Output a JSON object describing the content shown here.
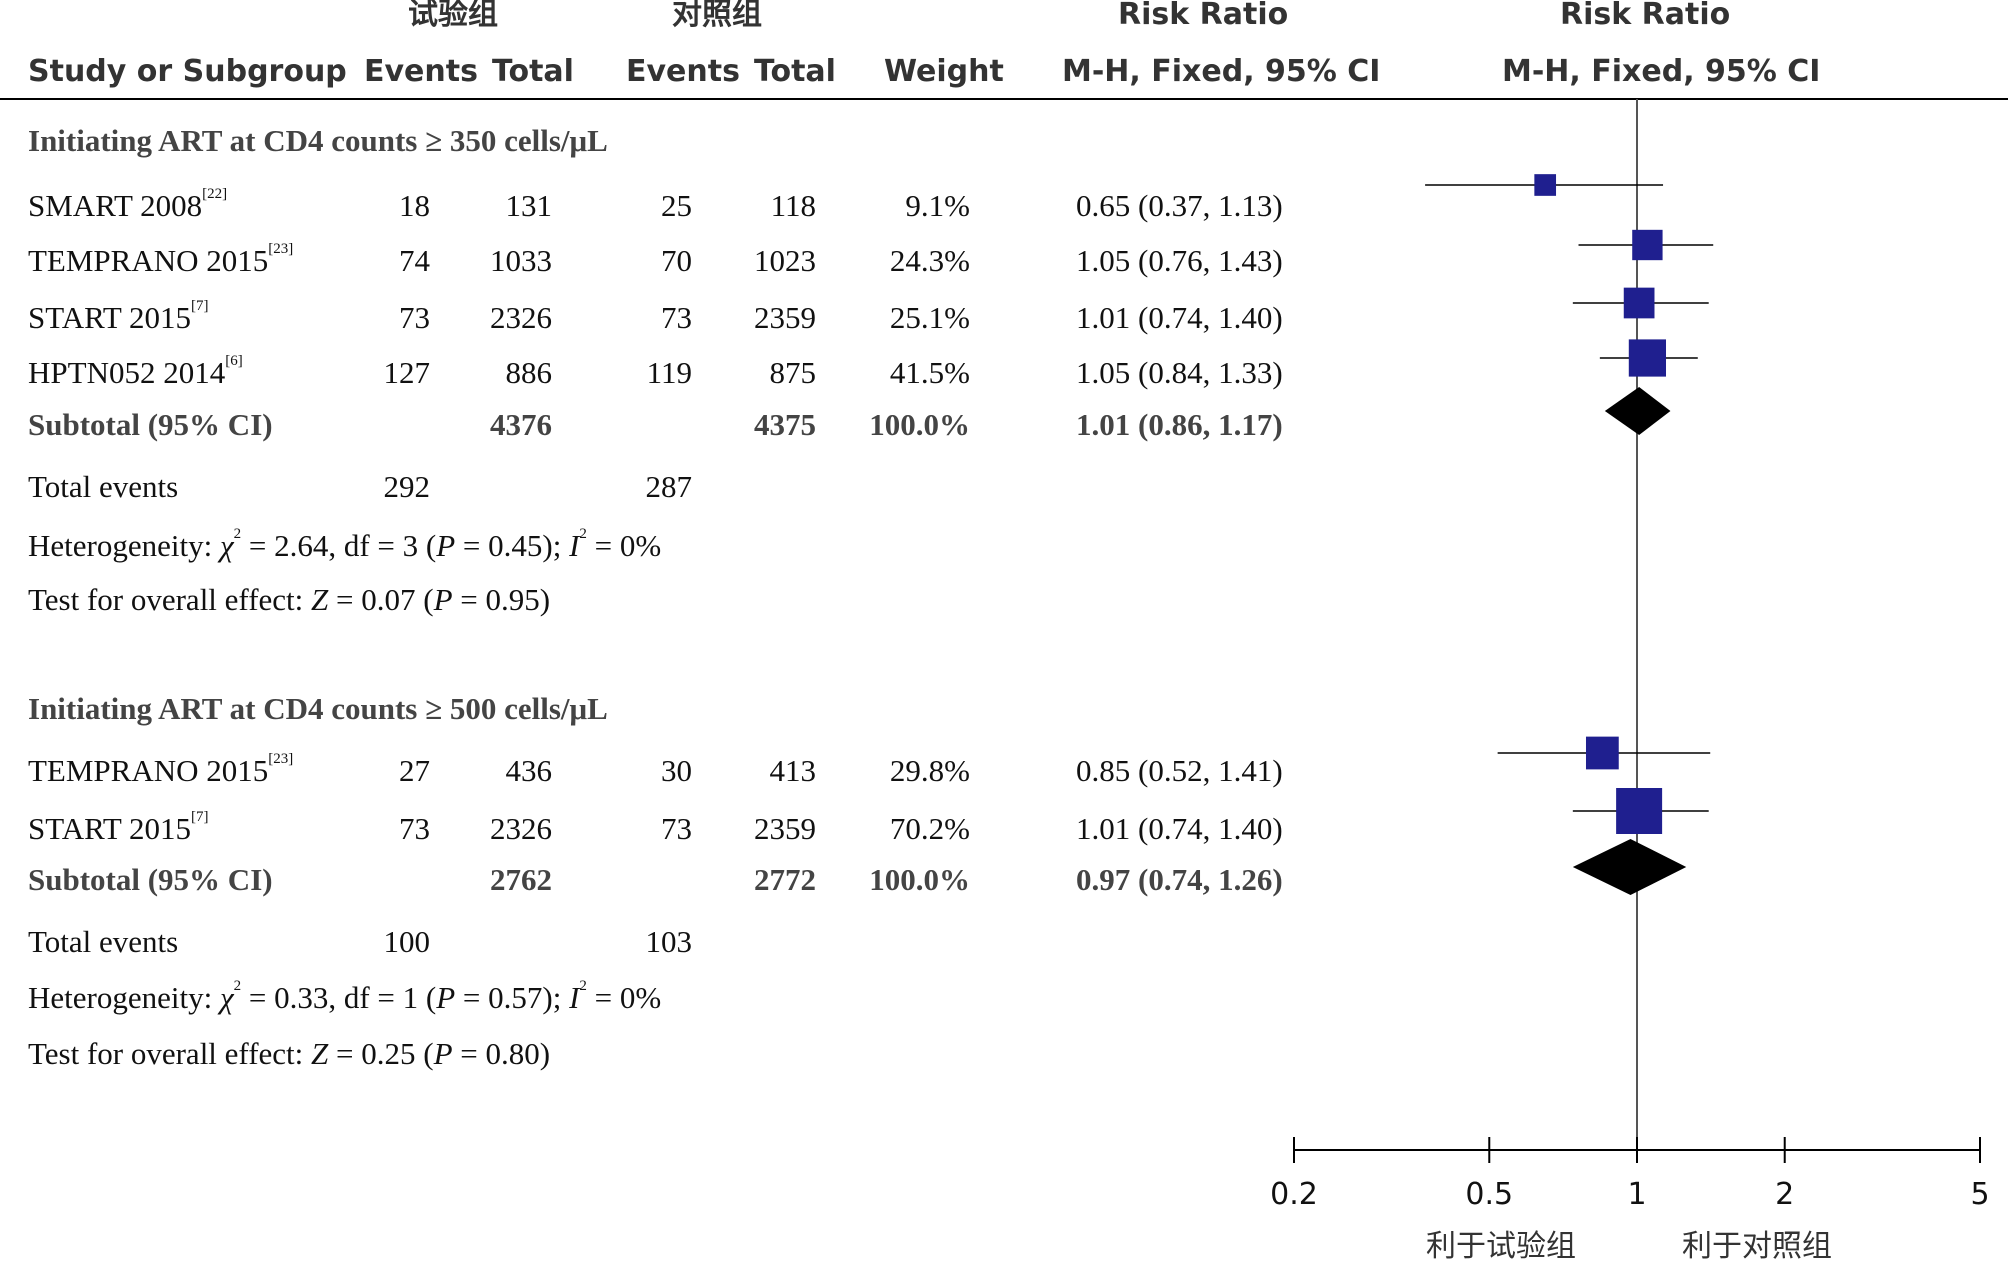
{
  "header": {
    "group_exp": "试验组",
    "group_ctrl": "对照组",
    "risk_ratio_label": "Risk Ratio",
    "risk_ratio_plot_label": "Risk Ratio",
    "col_study": "Study or Subgroup",
    "col_events_exp": "Events",
    "col_total_exp": "Total",
    "col_events_ctrl": "Events",
    "col_total_ctrl": "Total",
    "col_weight": "Weight",
    "col_ci": "M-H, Fixed, 95% CI",
    "col_ci_plot": "M-H, Fixed, 95% CI"
  },
  "chart_data": {
    "type": "forest",
    "scale": "log",
    "xlim": [
      0.2,
      5
    ],
    "xticks": [
      "0.2",
      "0.5",
      "1",
      "2",
      "5"
    ],
    "reference_line": 1,
    "favours_left": "利于试验组",
    "favours_right": "利于对照组",
    "subgroups": [
      {
        "title": "Initiating ART at CD4 counts ≥ 350 cells/μL",
        "studies": [
          {
            "name": "SMART 2008",
            "ref": "[22]",
            "events_exp": "18",
            "total_exp": "131",
            "events_ctrl": "25",
            "total_ctrl": "118",
            "weight": "9.1%",
            "ci_text": "0.65 (0.37, 1.13)",
            "rr": 0.65,
            "lo": 0.37,
            "hi": 1.13,
            "w": 9.1
          },
          {
            "name": "TEMPRANO 2015",
            "ref": "[23]",
            "events_exp": "74",
            "total_exp": "1033",
            "events_ctrl": "70",
            "total_ctrl": "1023",
            "weight": "24.3%",
            "ci_text": "1.05 (0.76, 1.43)",
            "rr": 1.05,
            "lo": 0.76,
            "hi": 1.43,
            "w": 24.3
          },
          {
            "name": "START 2015",
            "ref": "[7]",
            "events_exp": "73",
            "total_exp": "2326",
            "events_ctrl": "73",
            "total_ctrl": "2359",
            "weight": "25.1%",
            "ci_text": "1.01 (0.74, 1.40)",
            "rr": 1.01,
            "lo": 0.74,
            "hi": 1.4,
            "w": 25.1
          },
          {
            "name": "HPTN052 2014",
            "ref": "[6]",
            "events_exp": "127",
            "total_exp": "886",
            "events_ctrl": "119",
            "total_ctrl": "875",
            "weight": "41.5%",
            "ci_text": "1.05 (0.84, 1.33)",
            "rr": 1.05,
            "lo": 0.84,
            "hi": 1.33,
            "w": 41.5
          }
        ],
        "subtotal": {
          "label": "Subtotal (95% CI)",
          "total_exp": "4376",
          "total_ctrl": "4375",
          "weight": "100.0%",
          "ci_text": "1.01 (0.86, 1.17)",
          "rr": 1.01,
          "lo": 0.86,
          "hi": 1.17
        },
        "total_events_label": "Total events",
        "total_events_exp": "292",
        "total_events_ctrl": "287",
        "heterogeneity": {
          "prefix": "Heterogeneity: ",
          "chi2_sym": "χ",
          "chi2_val": " = 2.64, df = 3 (",
          "p": "P",
          "p_val": " = 0.45); ",
          "i": "I",
          "i2_val": " = 0%"
        },
        "overall": {
          "prefix": "Test for overall effect: ",
          "z": "Z",
          "z_val": " = 0.07 (",
          "p": "P",
          "p_val": " = 0.95)"
        }
      },
      {
        "title": "Initiating ART at CD4 counts ≥ 500 cells/μL",
        "studies": [
          {
            "name": "TEMPRANO 2015",
            "ref": "[23]",
            "events_exp": "27",
            "total_exp": "436",
            "events_ctrl": "30",
            "total_ctrl": "413",
            "weight": "29.8%",
            "ci_text": "0.85 (0.52, 1.41)",
            "rr": 0.85,
            "lo": 0.52,
            "hi": 1.41,
            "w": 29.8
          },
          {
            "name": "START 2015",
            "ref": "[7]",
            "events_exp": "73",
            "total_exp": "2326",
            "events_ctrl": "73",
            "total_ctrl": "2359",
            "weight": "70.2%",
            "ci_text": "1.01 (0.74, 1.40)",
            "rr": 1.01,
            "lo": 0.74,
            "hi": 1.4,
            "w": 70.2
          }
        ],
        "subtotal": {
          "label": "Subtotal (95% CI)",
          "total_exp": "2762",
          "total_ctrl": "2772",
          "weight": "100.0%",
          "ci_text": "0.97 (0.74, 1.26)",
          "rr": 0.97,
          "lo": 0.74,
          "hi": 1.26
        },
        "total_events_label": "Total events",
        "total_events_exp": "100",
        "total_events_ctrl": "103",
        "heterogeneity": {
          "prefix": "Heterogeneity: ",
          "chi2_sym": "χ",
          "chi2_val": " = 0.33, df = 1 (",
          "p": "P",
          "p_val": " = 0.57); ",
          "i": "I",
          "i2_val": " = 0%"
        },
        "overall": {
          "prefix": "Test for overall effect: ",
          "z": "Z",
          "z_val": " = 0.25 (",
          "p": "P",
          "p_val": " = 0.80)"
        }
      }
    ],
    "colors": {
      "marker": "#1f1f8f",
      "diamond": "#000000",
      "line": "#000000",
      "reference": "#555555"
    }
  }
}
